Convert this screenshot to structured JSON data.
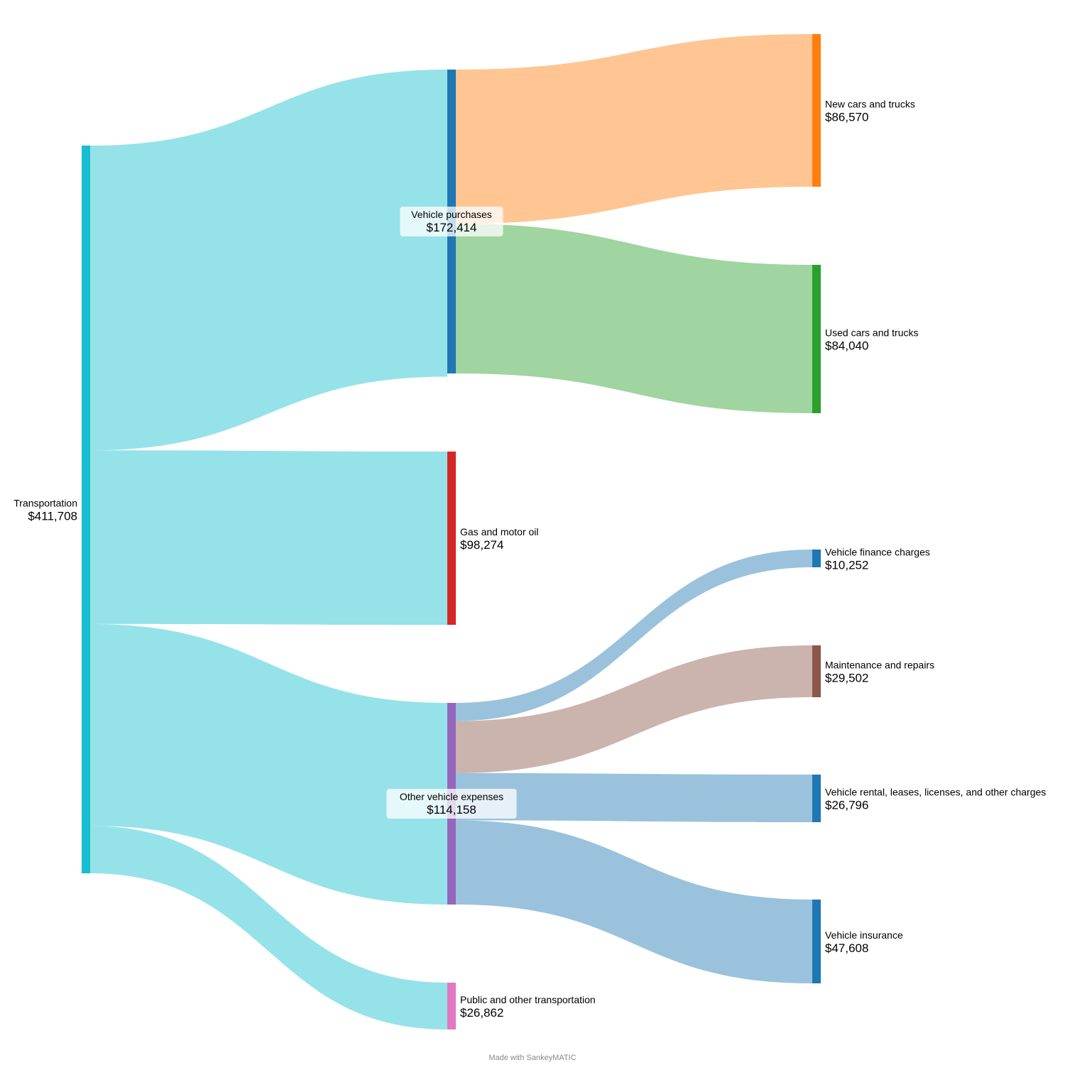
{
  "chart_data": {
    "type": "sankey",
    "nodes": [
      {
        "id": "transportation",
        "name": "Transportation",
        "value": "$411,708",
        "color": "#17becf"
      },
      {
        "id": "vehicle_purchases",
        "name": "Vehicle purchases",
        "value": "$172,414",
        "color": "#1f77b4"
      },
      {
        "id": "gas",
        "name": "Gas and motor oil",
        "value": "$98,274",
        "color": "#d62728"
      },
      {
        "id": "other_vehicle",
        "name": "Other vehicle expenses",
        "value": "$114,158",
        "color": "#9467bd"
      },
      {
        "id": "public",
        "name": "Public and other transportation",
        "value": "$26,862",
        "color": "#e377c2"
      },
      {
        "id": "new_cars",
        "name": "New cars and trucks",
        "value": "$86,570",
        "color": "#ff7f0e"
      },
      {
        "id": "used_cars",
        "name": "Used cars and trucks",
        "value": "$84,040",
        "color": "#2ca02c"
      },
      {
        "id": "finance",
        "name": "Vehicle finance charges",
        "value": "$10,252",
        "color": "#1f77b4"
      },
      {
        "id": "maintenance",
        "name": "Maintenance and repairs",
        "value": "$29,502",
        "color": "#8c564b"
      },
      {
        "id": "rental",
        "name": "Vehicle rental, leases, licenses, and other charges",
        "value": "$26,796",
        "color": "#1f77b4"
      },
      {
        "id": "insurance",
        "name": "Vehicle insurance",
        "value": "$47,608",
        "color": "#1f77b4"
      }
    ],
    "links": [
      {
        "source": "transportation",
        "target": "vehicle_purchases",
        "value": 172414,
        "color": "#17becf"
      },
      {
        "source": "transportation",
        "target": "gas",
        "value": 98274,
        "color": "#17becf"
      },
      {
        "source": "transportation",
        "target": "other_vehicle",
        "value": 114158,
        "color": "#17becf"
      },
      {
        "source": "transportation",
        "target": "public",
        "value": 26862,
        "color": "#17becf"
      },
      {
        "source": "vehicle_purchases",
        "target": "new_cars",
        "value": 86570,
        "color": "#ff7f0e"
      },
      {
        "source": "vehicle_purchases",
        "target": "used_cars",
        "value": 84040,
        "color": "#2ca02c"
      },
      {
        "source": "other_vehicle",
        "target": "finance",
        "value": 10252,
        "color": "#1f77b4"
      },
      {
        "source": "other_vehicle",
        "target": "maintenance",
        "value": 29502,
        "color": "#8c564b"
      },
      {
        "source": "other_vehicle",
        "target": "rental",
        "value": 26796,
        "color": "#1f77b4"
      },
      {
        "source": "other_vehicle",
        "target": "insurance",
        "value": 47608,
        "color": "#1f77b4"
      }
    ]
  },
  "credit": "Made with SankeyMATIC"
}
